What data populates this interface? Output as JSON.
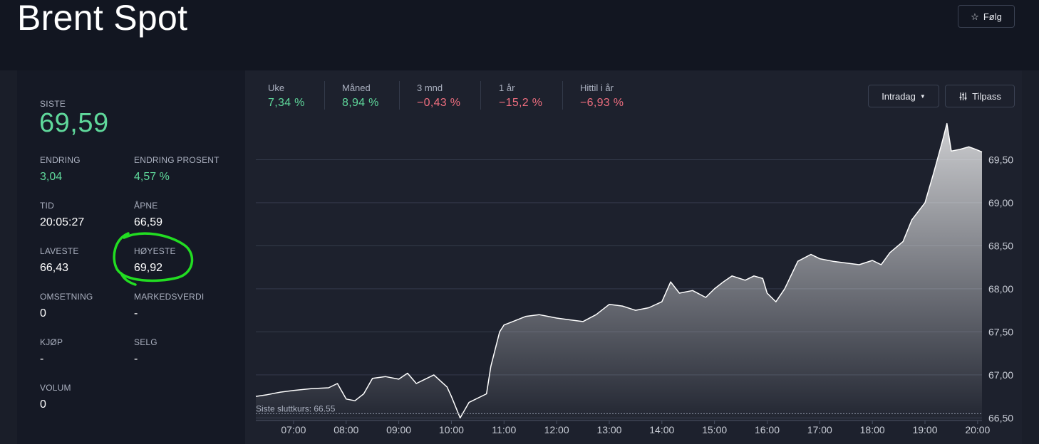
{
  "header": {
    "title": "Brent Spot",
    "follow_label": "Følg",
    "follow_icon": "star-outline-icon"
  },
  "quote": {
    "last_label": "SISTE",
    "last_value": "69,59",
    "stats": [
      {
        "key": "change",
        "label": "ENDRING",
        "value": "3,04",
        "positive": true
      },
      {
        "key": "change-percent",
        "label": "ENDRING PROSENT",
        "value": "4,57 %",
        "positive": true
      },
      {
        "key": "time",
        "label": "TID",
        "value": "20:05:27"
      },
      {
        "key": "open",
        "label": "ÅPNE",
        "value": "66,59"
      },
      {
        "key": "low",
        "label": "LAVESTE",
        "value": "66,43"
      },
      {
        "key": "high",
        "label": "HØYESTE",
        "value": "69,92"
      },
      {
        "key": "turnover",
        "label": "OMSETNING",
        "value": "0"
      },
      {
        "key": "market-cap",
        "label": "MARKEDSVERDI",
        "value": "-"
      },
      {
        "key": "bid",
        "label": "KJØP",
        "value": "-"
      },
      {
        "key": "ask",
        "label": "SELG",
        "value": "-"
      },
      {
        "key": "volume",
        "label": "VOLUM",
        "value": "0"
      }
    ]
  },
  "performance": [
    {
      "label": "Uke",
      "value": "7,34 %",
      "direction": "up"
    },
    {
      "label": "Måned",
      "value": "8,94 %",
      "direction": "up"
    },
    {
      "label": "3 mnd",
      "value": "−0,43 %",
      "direction": "down"
    },
    {
      "label": "1 år",
      "value": "−15,2 %",
      "direction": "down"
    },
    {
      "label": "Hittil i år",
      "value": "−6,93 %",
      "direction": "down"
    }
  ],
  "controls": {
    "range_label": "Intradag",
    "range_icon": "caret-down-icon",
    "customize_label": "Tilpass",
    "customize_icon": "sliders-icon"
  },
  "colors": {
    "positive": "#5fd89b",
    "negative": "#ef6e7f",
    "annotation": "#22dd22",
    "line": "#ffffff"
  },
  "chart_data": {
    "type": "area",
    "x_ticks": [
      "07:00",
      "08:00",
      "09:00",
      "10:00",
      "11:00",
      "12:00",
      "13:00",
      "14:00",
      "15:00",
      "16:00",
      "17:00",
      "18:00",
      "19:00",
      "20:00"
    ],
    "y_ticks": [
      "66,50",
      "67,00",
      "67,50",
      "68,00",
      "68,50",
      "69,00",
      "69,50"
    ],
    "ylim": [
      66.47,
      69.95
    ],
    "x_range": [
      "06:17",
      "20:05"
    ],
    "reference_line": {
      "label": "Siste sluttkurs: 66.55",
      "value": 66.55
    },
    "points": [
      [
        "06:17",
        66.75
      ],
      [
        "06:30",
        66.77
      ],
      [
        "06:45",
        66.8
      ],
      [
        "07:00",
        66.82
      ],
      [
        "07:20",
        66.84
      ],
      [
        "07:40",
        66.85
      ],
      [
        "07:50",
        66.9
      ],
      [
        "08:00",
        66.72
      ],
      [
        "08:10",
        66.7
      ],
      [
        "08:20",
        66.78
      ],
      [
        "08:30",
        66.96
      ],
      [
        "08:45",
        66.98
      ],
      [
        "09:00",
        66.95
      ],
      [
        "09:10",
        67.02
      ],
      [
        "09:20",
        66.9
      ],
      [
        "09:30",
        66.95
      ],
      [
        "09:40",
        67.0
      ],
      [
        "09:55",
        66.86
      ],
      [
        "10:00",
        66.75
      ],
      [
        "10:10",
        66.5
      ],
      [
        "10:20",
        66.68
      ],
      [
        "10:40",
        66.78
      ],
      [
        "10:45",
        67.1
      ],
      [
        "10:55",
        67.5
      ],
      [
        "11:00",
        67.58
      ],
      [
        "11:10",
        67.62
      ],
      [
        "11:25",
        67.68
      ],
      [
        "11:40",
        67.7
      ],
      [
        "12:00",
        67.66
      ],
      [
        "12:15",
        67.64
      ],
      [
        "12:30",
        67.62
      ],
      [
        "12:45",
        67.7
      ],
      [
        "13:00",
        67.82
      ],
      [
        "13:15",
        67.8
      ],
      [
        "13:30",
        67.75
      ],
      [
        "13:45",
        67.78
      ],
      [
        "14:00",
        67.85
      ],
      [
        "14:10",
        68.08
      ],
      [
        "14:20",
        67.95
      ],
      [
        "14:35",
        67.98
      ],
      [
        "14:50",
        67.9
      ],
      [
        "15:00",
        68.0
      ],
      [
        "15:10",
        68.08
      ],
      [
        "15:20",
        68.15
      ],
      [
        "15:35",
        68.1
      ],
      [
        "15:45",
        68.15
      ],
      [
        "15:55",
        68.12
      ],
      [
        "16:00",
        67.95
      ],
      [
        "16:10",
        67.85
      ],
      [
        "16:20",
        68.0
      ],
      [
        "16:35",
        68.32
      ],
      [
        "16:50",
        68.4
      ],
      [
        "17:00",
        68.35
      ],
      [
        "17:15",
        68.32
      ],
      [
        "17:30",
        68.3
      ],
      [
        "17:45",
        68.28
      ],
      [
        "18:00",
        68.33
      ],
      [
        "18:10",
        68.28
      ],
      [
        "18:20",
        68.42
      ],
      [
        "18:35",
        68.55
      ],
      [
        "18:45",
        68.8
      ],
      [
        "19:00",
        69.0
      ],
      [
        "19:10",
        69.35
      ],
      [
        "19:20",
        69.72
      ],
      [
        "19:25",
        69.92
      ],
      [
        "19:30",
        69.6
      ],
      [
        "19:40",
        69.62
      ],
      [
        "19:50",
        69.65
      ],
      [
        "19:58",
        69.62
      ],
      [
        "20:05",
        69.59
      ]
    ]
  }
}
